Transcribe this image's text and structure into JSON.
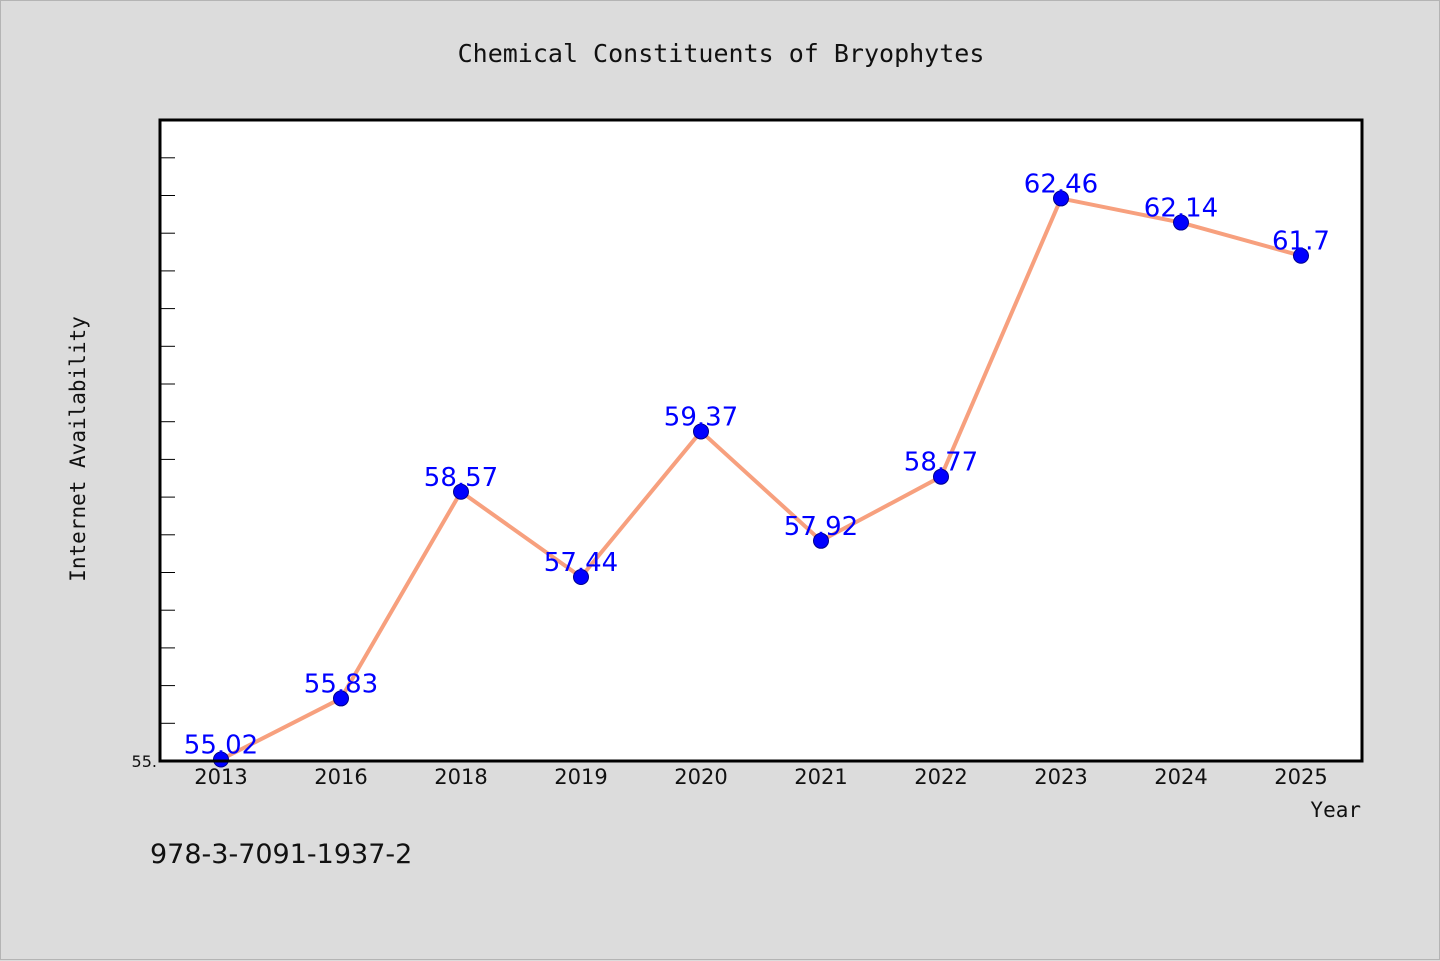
{
  "chart_data": {
    "type": "line",
    "title": "Chemical Constituents of Bryophytes",
    "xlabel": "Year",
    "ylabel": "Internet Availability",
    "categories": [
      "2013",
      "2016",
      "2018",
      "2019",
      "2020",
      "2021",
      "2022",
      "2023",
      "2024",
      "2025"
    ],
    "series": [
      {
        "values": [
          55.02,
          55.83,
          58.57,
          57.44,
          59.37,
          57.92,
          58.77,
          62.46,
          62.14,
          61.7
        ]
      }
    ],
    "data_labels": [
      "55.02",
      "55.83",
      "58.57",
      "57.44",
      "59.37",
      "57.92",
      "58.77",
      "62.46",
      "62.14",
      "61.7"
    ],
    "ylim": [
      55.0,
      63.5
    ],
    "y_tick_labels": [
      "55."
    ],
    "grid": false,
    "legend": "none",
    "colors": {
      "line": "#f7a07e",
      "marker": "#0000ff",
      "label": "#0000ff",
      "plot_background": "#ffffff",
      "page_background": "#dcdcdc"
    }
  },
  "footer": {
    "isbn": "978-3-7091-1937-2"
  }
}
